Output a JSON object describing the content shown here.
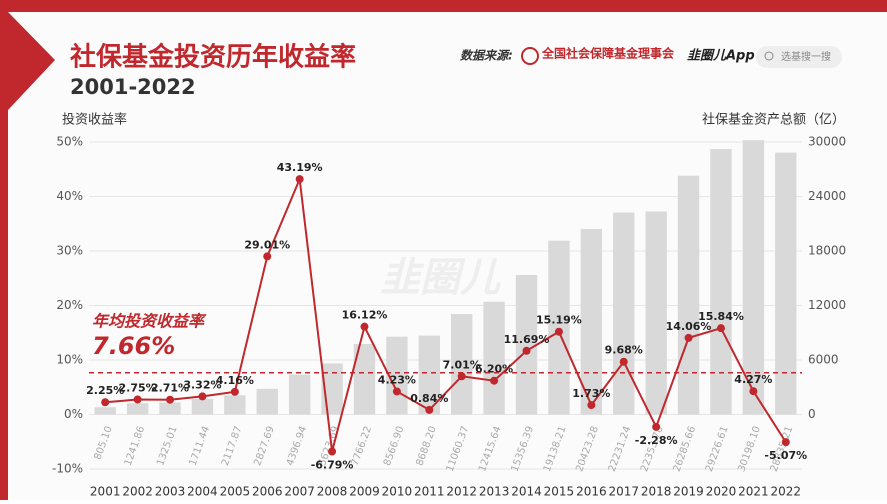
{
  "header": {
    "title": "社保基金投资历年收益率",
    "subtitle": "2001-2022",
    "source_label": "数据来源:",
    "source": "全国社会保障基金理事会",
    "app": "韭圈儿App",
    "search": "选基搜一搜",
    "watermark": "韭圈儿"
  },
  "chart_data": {
    "type": "combo",
    "ylabel": "投资收益率",
    "y2label": "社保基金资产总额（亿）",
    "categories": [
      "2001",
      "2002",
      "2003",
      "2004",
      "2005",
      "2006",
      "2007",
      "2008",
      "2009",
      "2010",
      "2011",
      "2012",
      "2013",
      "2014",
      "2015",
      "2016",
      "2017",
      "2018",
      "2019",
      "2020",
      "2021",
      "2022"
    ],
    "series": [
      {
        "type": "bar",
        "axis": "y2",
        "color": "#d9d9d9",
        "values": [
          805.1,
          1241.86,
          1325.01,
          1711.44,
          2117.87,
          2827.69,
          4396.94,
          5623.69,
          7766.22,
          8566.9,
          8688.2,
          11060.37,
          12415.64,
          15356.39,
          19138.21,
          20423.28,
          22231.24,
          22353.78,
          26285.66,
          29226.61,
          30198.1,
          28835.21
        ],
        "value_labels": [
          "805.10",
          "1241.86",
          "1325.01",
          "1711.44",
          "2117.87",
          "2827.69",
          "4396.94",
          "5623.69",
          "7766.22",
          "8566.90",
          "8688.20",
          "11060.37",
          "12415.64",
          "15356.39",
          "19138.21",
          "20423.28",
          "22231.24",
          "22353.78",
          "26285.66",
          "29226.61",
          "30198.10",
          "28835.21"
        ]
      },
      {
        "type": "line",
        "axis": "y",
        "color": "#c0282d",
        "values": [
          2.25,
          2.75,
          2.71,
          3.32,
          4.16,
          29.01,
          43.19,
          -6.79,
          16.12,
          4.23,
          0.84,
          7.01,
          6.2,
          11.69,
          15.19,
          1.73,
          9.68,
          -2.28,
          14.06,
          15.84,
          4.27,
          -5.07
        ],
        "value_labels": [
          "2.25%",
          "2.75%",
          "2.71%",
          "3.32%",
          "4.16%",
          "29.01%",
          "43.19%",
          "-6.79%",
          "16.12%",
          "4.23%",
          "0.84%",
          "7.01%",
          "6.20%",
          "11.69%",
          "15.19%",
          "1.73%",
          "9.68%",
          "-2.28%",
          "14.06%",
          "15.84%",
          "4.27%",
          "-5.07%"
        ]
      }
    ],
    "average": {
      "label": "年均投资收益率",
      "value": 7.66,
      "value_label": "7.66%"
    },
    "ylim": [
      -10,
      50
    ],
    "yticks": [
      {
        "value": -10,
        "label": "-10%"
      },
      {
        "value": 0,
        "label": "0%"
      },
      {
        "value": 10,
        "label": "10%"
      },
      {
        "value": 20,
        "label": "20%"
      },
      {
        "value": 30,
        "label": "30%"
      },
      {
        "value": 40,
        "label": "40%"
      },
      {
        "value": 50,
        "label": "50%"
      }
    ],
    "y2lim": [
      -6000,
      30000
    ],
    "y2ticks": [
      0,
      6000,
      12000,
      18000,
      24000,
      30000
    ],
    "grid": true
  }
}
